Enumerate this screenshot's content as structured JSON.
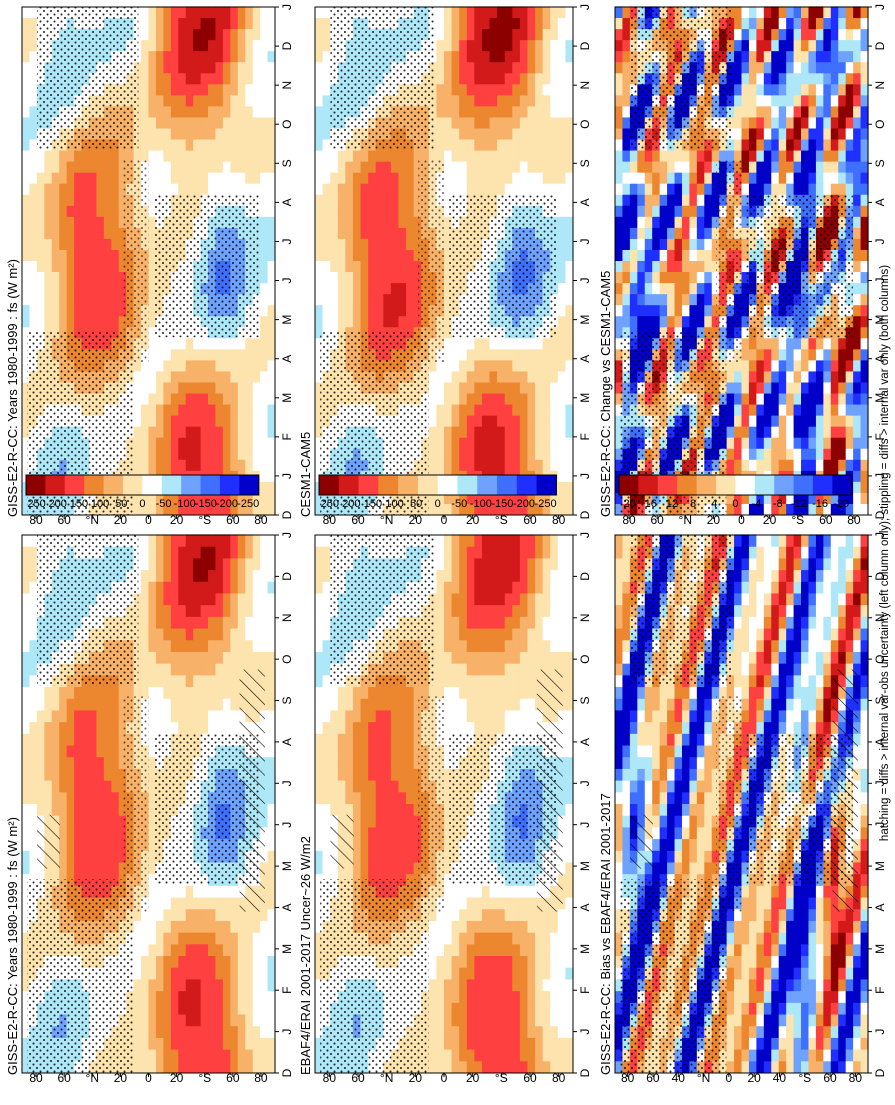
{
  "chart_data": [
    {
      "type": "heatmap",
      "title": "GISS-E2-R-CC: Years 1980-1999 : fs (W m²)",
      "xlabel": "month",
      "ylabel": "latitude",
      "x_ticks": [
        "D",
        "J",
        "F",
        "M",
        "A",
        "M",
        "J",
        "J",
        "A",
        "S",
        "O",
        "N",
        "D",
        "J"
      ],
      "y_ticks": [
        "80",
        "60",
        "°N",
        "20",
        "0",
        "20",
        "°S",
        "60",
        "80"
      ],
      "field": "seasonal_toa_flux",
      "pattern": "model_1980_1999",
      "stippling": true,
      "hatching": true,
      "colorbar": [
        "250",
        "200",
        "150",
        "100",
        "50",
        "0",
        "-50",
        "-100",
        "-150",
        "-200",
        "-250"
      ]
    },
    {
      "type": "heatmap",
      "title": "GISS-E2-R-CC: Years 1980-1999 : fs (W m²)",
      "xlabel": "month",
      "ylabel": "latitude",
      "x_ticks": [
        "D",
        "J",
        "F",
        "M",
        "A",
        "M",
        "J",
        "J",
        "A",
        "S",
        "O",
        "N",
        "D",
        "J"
      ],
      "y_ticks": [
        "80",
        "60",
        "°N",
        "20",
        "0",
        "20",
        "°S",
        "60",
        "80"
      ],
      "field": "seasonal_toa_flux",
      "pattern": "model_1980_1999",
      "stippling": true,
      "hatching": false,
      "colorbar": [
        "250",
        "200",
        "150",
        "100",
        "50",
        "0",
        "-50",
        "-100",
        "-150",
        "-200",
        "-250"
      ]
    },
    {
      "type": "heatmap",
      "title": "EBAF4/ERAI 2001-2017 Uncer~26 W/m2",
      "xlabel": "month",
      "ylabel": "latitude",
      "x_ticks": [
        "D",
        "J",
        "F",
        "M",
        "A",
        "M",
        "J",
        "J",
        "A",
        "S",
        "O",
        "N",
        "D",
        "J"
      ],
      "y_ticks": [
        "80",
        "60",
        "°N",
        "20",
        "0",
        "20",
        "°S",
        "60",
        "80"
      ],
      "field": "seasonal_toa_flux",
      "pattern": "obs_2001_2017",
      "stippling": true,
      "hatching": true,
      "colorbar": [
        "250",
        "200",
        "150",
        "100",
        "50",
        "0",
        "-50",
        "-100",
        "-150",
        "-200",
        "-250"
      ]
    },
    {
      "type": "heatmap",
      "title": "CESM1-CAM5",
      "xlabel": "month",
      "ylabel": "latitude",
      "x_ticks": [
        "D",
        "J",
        "F",
        "M",
        "A",
        "M",
        "J",
        "J",
        "A",
        "S",
        "O",
        "N",
        "D",
        "J"
      ],
      "y_ticks": [
        "80",
        "60",
        "°N",
        "20",
        "0",
        "20",
        "°S",
        "60",
        "80"
      ],
      "field": "seasonal_toa_flux",
      "pattern": "cesm",
      "stippling": true,
      "hatching": false,
      "colorbar": [
        "250",
        "200",
        "150",
        "100",
        "50",
        "0",
        "-50",
        "-100",
        "-150",
        "-200",
        "-250"
      ]
    },
    {
      "type": "heatmap",
      "title": "GISS-E2-R-CC: Bias vs EBAF4/ERAI 2001-2017",
      "xlabel": "month",
      "ylabel": "latitude",
      "x_ticks": [
        "D",
        "J",
        "F",
        "M",
        "A",
        "M",
        "J",
        "J",
        "A",
        "S",
        "O",
        "N",
        "D",
        "J"
      ],
      "y_ticks": [
        "80",
        "60",
        "40",
        "°N",
        "0",
        "20",
        "40",
        "°S",
        "60",
        "80"
      ],
      "field": "difference",
      "pattern": "bias",
      "stippling": true,
      "hatching": true,
      "colorbar": [
        "20",
        "16",
        "12",
        "8",
        "4",
        "0",
        "-4",
        "-8",
        "-12",
        "-16",
        "-20"
      ]
    },
    {
      "type": "heatmap",
      "title": "GISS-E2-R-CC: Change vs CESM1-CAM5",
      "xlabel": "month",
      "ylabel": "latitude",
      "x_ticks": [
        "D",
        "J",
        "F",
        "M",
        "A",
        "M",
        "J",
        "J",
        "A",
        "S",
        "O",
        "N",
        "D",
        "J"
      ],
      "y_ticks": [
        "80",
        "60",
        "°N",
        "20",
        "0",
        "20",
        "°S",
        "60",
        "80"
      ],
      "field": "difference",
      "pattern": "change",
      "stippling": true,
      "hatching": false,
      "colorbar": [
        "20",
        "16",
        "12",
        "8",
        "4",
        "0",
        "-4",
        "-8",
        "-12",
        "-16",
        "-20"
      ]
    }
  ],
  "footnote": "hatching = diffs > internal var-obs uncertainty (left column only); stippling = diffs > internal var only (both columns)",
  "palette": [
    "#0000c8",
    "#1f2fff",
    "#3f6fff",
    "#6fa2ff",
    "#aee7f7",
    "#ffffff",
    "#fde3ae",
    "#f8b168",
    "#ec8730",
    "#ff4040",
    "#d21a1a",
    "#8c0000"
  ]
}
